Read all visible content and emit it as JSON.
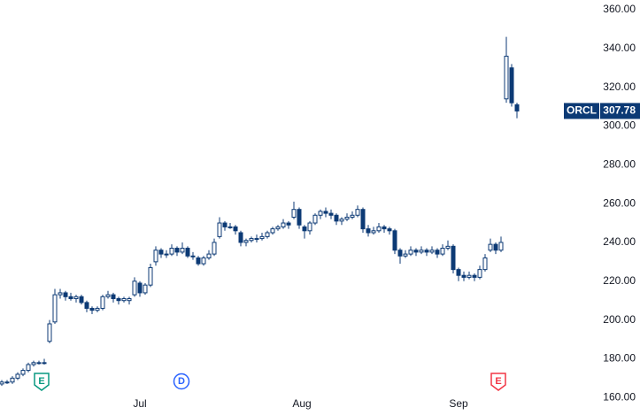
{
  "chart_data": {
    "type": "candlestick",
    "symbol": "ORCL",
    "candle_fields": [
      "open",
      "high",
      "low",
      "close"
    ],
    "candles": [
      [
        167,
        169,
        166,
        168
      ],
      [
        168,
        169,
        167,
        168
      ],
      [
        168,
        171,
        167,
        170
      ],
      [
        170,
        173,
        169,
        172
      ],
      [
        172,
        175,
        171,
        174
      ],
      [
        174,
        178,
        173,
        177
      ],
      [
        177,
        179,
        176,
        178
      ],
      [
        178,
        179,
        177,
        178
      ],
      [
        178,
        180,
        177,
        178
      ],
      [
        189,
        200,
        188,
        198
      ],
      [
        199,
        216,
        198,
        213
      ],
      [
        213,
        216,
        211,
        214
      ],
      [
        214,
        215,
        210,
        212
      ],
      [
        212,
        214,
        210,
        211
      ],
      [
        211,
        213,
        209,
        212
      ],
      [
        212,
        213,
        208,
        209
      ],
      [
        209,
        210,
        204,
        206
      ],
      [
        206,
        207,
        203,
        205
      ],
      [
        205,
        207,
        204,
        206
      ],
      [
        206,
        213,
        205,
        212
      ],
      [
        212,
        215,
        211,
        213
      ],
      [
        213,
        214,
        209,
        211
      ],
      [
        211,
        212,
        208,
        210
      ],
      [
        210,
        212,
        209,
        211
      ],
      [
        210,
        212,
        208,
        211
      ],
      [
        213,
        222,
        212,
        220
      ],
      [
        219,
        220,
        212,
        214
      ],
      [
        214,
        219,
        213,
        218
      ],
      [
        218,
        229,
        217,
        227
      ],
      [
        230,
        238,
        228,
        236
      ],
      [
        236,
        237,
        232,
        234
      ],
      [
        234,
        236,
        232,
        234
      ],
      [
        234,
        239,
        233,
        237
      ],
      [
        237,
        238,
        233,
        235
      ],
      [
        235,
        240,
        234,
        237
      ],
      [
        237,
        238,
        232,
        233
      ],
      [
        233,
        235,
        231,
        233
      ],
      [
        232,
        233,
        228,
        229
      ],
      [
        229,
        233,
        228,
        232
      ],
      [
        232,
        236,
        231,
        234
      ],
      [
        234,
        242,
        233,
        240
      ],
      [
        243,
        253,
        242,
        250
      ],
      [
        250,
        251,
        246,
        248
      ],
      [
        248,
        250,
        247,
        248
      ],
      [
        248,
        249,
        244,
        246
      ],
      [
        245,
        246,
        238,
        240
      ],
      [
        240,
        242,
        238,
        241
      ],
      [
        241,
        243,
        240,
        242
      ],
      [
        242,
        244,
        240,
        242
      ],
      [
        242,
        245,
        241,
        243
      ],
      [
        243,
        246,
        242,
        245
      ],
      [
        245,
        248,
        244,
        247
      ],
      [
        247,
        249,
        246,
        248
      ],
      [
        248,
        252,
        247,
        250
      ],
      [
        250,
        251,
        247,
        249
      ],
      [
        253,
        261,
        252,
        257
      ],
      [
        257,
        258,
        247,
        249
      ],
      [
        248,
        249,
        242,
        246
      ],
      [
        246,
        251,
        244,
        250
      ],
      [
        250,
        255,
        249,
        254
      ],
      [
        254,
        257,
        252,
        256
      ],
      [
        256,
        258,
        253,
        255
      ],
      [
        255,
        257,
        252,
        254
      ],
      [
        254,
        255,
        249,
        251
      ],
      [
        251,
        253,
        249,
        252
      ],
      [
        252,
        255,
        251,
        253
      ],
      [
        253,
        256,
        252,
        254
      ],
      [
        254,
        259,
        253,
        257
      ],
      [
        257,
        258,
        245,
        247
      ],
      [
        247,
        249,
        243,
        245
      ],
      [
        245,
        248,
        244,
        246
      ],
      [
        246,
        250,
        245,
        248
      ],
      [
        248,
        249,
        245,
        247
      ],
      [
        247,
        248,
        244,
        246
      ],
      [
        246,
        247,
        234,
        236
      ],
      [
        236,
        237,
        229,
        233
      ],
      [
        233,
        236,
        232,
        234
      ],
      [
        234,
        238,
        233,
        236
      ],
      [
        236,
        237,
        233,
        235
      ],
      [
        235,
        238,
        234,
        236
      ],
      [
        236,
        237,
        233,
        235
      ],
      [
        235,
        238,
        234,
        236
      ],
      [
        236,
        237,
        232,
        234
      ],
      [
        234,
        239,
        233,
        237
      ],
      [
        237,
        241,
        236,
        238
      ],
      [
        238,
        239,
        224,
        226
      ],
      [
        226,
        227,
        220,
        223
      ],
      [
        223,
        225,
        220,
        222
      ],
      [
        222,
        225,
        221,
        223
      ],
      [
        223,
        224,
        220,
        222
      ],
      [
        222,
        228,
        221,
        226
      ],
      [
        226,
        234,
        225,
        232
      ],
      [
        236,
        242,
        235,
        239
      ],
      [
        239,
        240,
        234,
        236
      ],
      [
        236,
        243,
        235,
        240
      ],
      [
        314,
        346,
        312,
        336
      ],
      [
        330,
        332,
        310,
        312
      ],
      [
        311,
        312,
        304,
        307.78
      ]
    ],
    "color": "#0c3a75",
    "ylim": [
      151,
      365
    ],
    "yticks": [
      {
        "value": 160,
        "label": "160.00"
      },
      {
        "value": 180,
        "label": "180.00"
      },
      {
        "value": 200,
        "label": "200.00"
      },
      {
        "value": 220,
        "label": "220.00"
      },
      {
        "value": 240,
        "label": "240.00"
      },
      {
        "value": 260,
        "label": "260.00"
      },
      {
        "value": 280,
        "label": "280.00"
      },
      {
        "value": 300,
        "label": "300.00"
      },
      {
        "value": 320,
        "label": "320.00"
      },
      {
        "value": 340,
        "label": "340.00"
      },
      {
        "value": 360,
        "label": "360.00"
      }
    ],
    "xticks": [
      {
        "value": 26,
        "label": "Jul"
      },
      {
        "value": 56.5,
        "label": "Aug"
      },
      {
        "value": 86,
        "label": "Sep"
      }
    ],
    "events": [
      {
        "label": "E",
        "color": "#089981"
      },
      {
        "label": "D",
        "color": "#2962ff"
      },
      {
        "label": "E",
        "color": "#f23645"
      }
    ]
  }
}
